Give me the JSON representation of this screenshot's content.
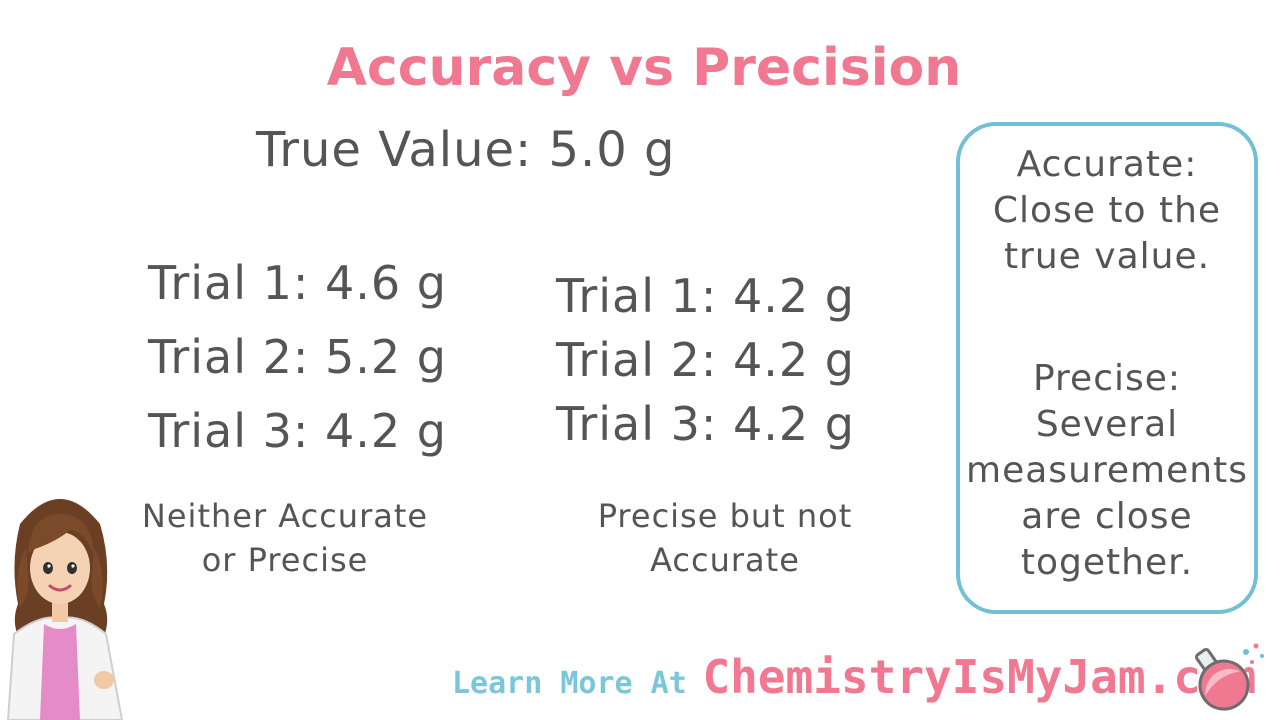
{
  "title": "Accuracy vs Precision",
  "true_value": "True Value: 5.0 g",
  "left_set": {
    "trials": [
      "Trial 1: 4.6 g",
      "Trial 2: 5.2 g",
      "Trial 3: 4.2 g"
    ],
    "verdict_lines": [
      "Neither Accurate",
      "or Precise"
    ]
  },
  "right_set": {
    "trials": [
      "Trial 1: 4.2 g",
      "Trial 2: 4.2 g",
      "Trial 3: 4.2 g"
    ],
    "verdict_lines": [
      "Precise but not",
      "Accurate"
    ]
  },
  "definitions": {
    "accurate_lines": [
      "Accurate:",
      "Close to the",
      "true value."
    ],
    "precise_lines": [
      "Precise:",
      "Several",
      "measurements",
      "are close",
      "together."
    ]
  },
  "footer": {
    "prefix": "Learn More At",
    "site": "ChemistryIsMyJam.com"
  },
  "colors": {
    "title_pink": "#f07890",
    "box_border_blue": "#72bfd6",
    "text_gray": "#555555"
  },
  "icons": [
    "scientist-avatar-icon",
    "flask-icon"
  ]
}
